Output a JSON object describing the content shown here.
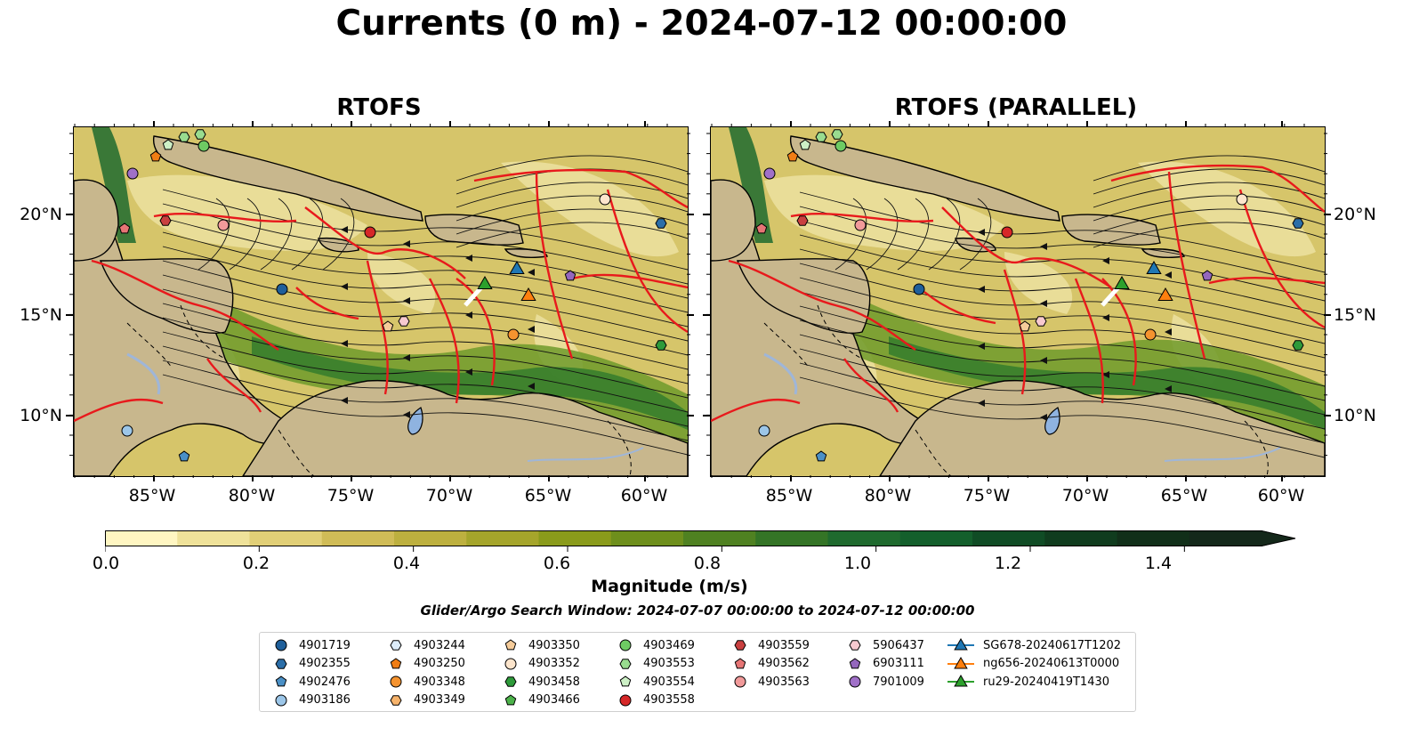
{
  "figure": {
    "title": "Currents (0 m) - 2024-07-12 00:00:00",
    "panels": [
      {
        "title": "RTOFS"
      },
      {
        "title": "RTOFS (PARALLEL)"
      }
    ],
    "lat_ticks": [
      "20°N",
      "15°N",
      "10°N"
    ],
    "lon_ticks": [
      "85°W",
      "80°W",
      "75°W",
      "70°W",
      "65°W",
      "60°W"
    ],
    "map_extent": {
      "lon": [
        -89,
        -58
      ],
      "lat": [
        7,
        24
      ]
    }
  },
  "colorbar": {
    "title": "Magnitude (m/s)",
    "tick_labels": [
      "0.0",
      "0.2",
      "0.4",
      "0.6",
      "0.8",
      "1.0",
      "1.2",
      "1.4"
    ],
    "range": [
      0,
      1.5
    ],
    "extend": "max",
    "colors": [
      "#fff6c2",
      "#efe29a",
      "#e1cf77",
      "#d0bc57",
      "#bdb03f",
      "#a5a52b",
      "#8a9b1b",
      "#6e8f1c",
      "#4f8121",
      "#347426",
      "#1f6a2e",
      "#145f2c",
      "#104c25",
      "#103c1e",
      "#112f19",
      "#14281a"
    ]
  },
  "search_window": "Glider/Argo Search Window: 2024-07-07 00:00:00 to 2024-07-12 00:00:00",
  "legend": {
    "columns": [
      [
        {
          "label": "4901719",
          "marker": "circle",
          "color": "#1f5f9a"
        },
        {
          "label": "4902355",
          "marker": "hexagon",
          "color": "#2b6ea8"
        },
        {
          "label": "4902476",
          "marker": "pentagon",
          "color": "#4a90c6"
        },
        {
          "label": "4903186",
          "marker": "circle",
          "color": "#9cc6e8"
        }
      ],
      [
        {
          "label": "4903244",
          "marker": "hexagon",
          "color": "#dcecf9"
        },
        {
          "label": "4903250",
          "marker": "pentagon",
          "color": "#f07d14"
        },
        {
          "label": "4903348",
          "marker": "circle",
          "color": "#f5932f"
        },
        {
          "label": "4903349",
          "marker": "hexagon",
          "color": "#f7b36b"
        }
      ],
      [
        {
          "label": "4903350",
          "marker": "pentagon",
          "color": "#f6cc9a"
        },
        {
          "label": "4903352",
          "marker": "circle",
          "color": "#fde5cc"
        },
        {
          "label": "4903458",
          "marker": "hexagon",
          "color": "#2e9a3a"
        },
        {
          "label": "4903466",
          "marker": "pentagon",
          "color": "#4cb24a"
        }
      ],
      [
        {
          "label": "4903469",
          "marker": "circle",
          "color": "#6ecb63"
        },
        {
          "label": "4903553",
          "marker": "hexagon",
          "color": "#99dc8f"
        },
        {
          "label": "4903554",
          "marker": "pentagon",
          "color": "#cdf0c6"
        },
        {
          "label": "4903558",
          "marker": "circle",
          "color": "#d62728"
        }
      ],
      [
        {
          "label": "4903559",
          "marker": "hexagon",
          "color": "#c94040"
        },
        {
          "label": "4903562",
          "marker": "pentagon",
          "color": "#e67575"
        },
        {
          "label": "4903563",
          "marker": "circle",
          "color": "#f19a9a"
        }
      ],
      [
        {
          "label": "5906437",
          "marker": "hexagon",
          "color": "#f7c9cf"
        },
        {
          "label": "6903111",
          "marker": "pentagon",
          "color": "#9467bd"
        },
        {
          "label": "7901009",
          "marker": "circle",
          "color": "#a070c8"
        }
      ],
      [
        {
          "label": "SG678-20240617T1202",
          "marker": "triangle-line",
          "color": "#1f77b4"
        },
        {
          "label": "ng656-20240613T0000",
          "marker": "triangle-line",
          "color": "#ff7f0e"
        },
        {
          "label": "ru29-20240419T1430",
          "marker": "triangle-line",
          "color": "#2ca02c"
        }
      ]
    ]
  }
}
